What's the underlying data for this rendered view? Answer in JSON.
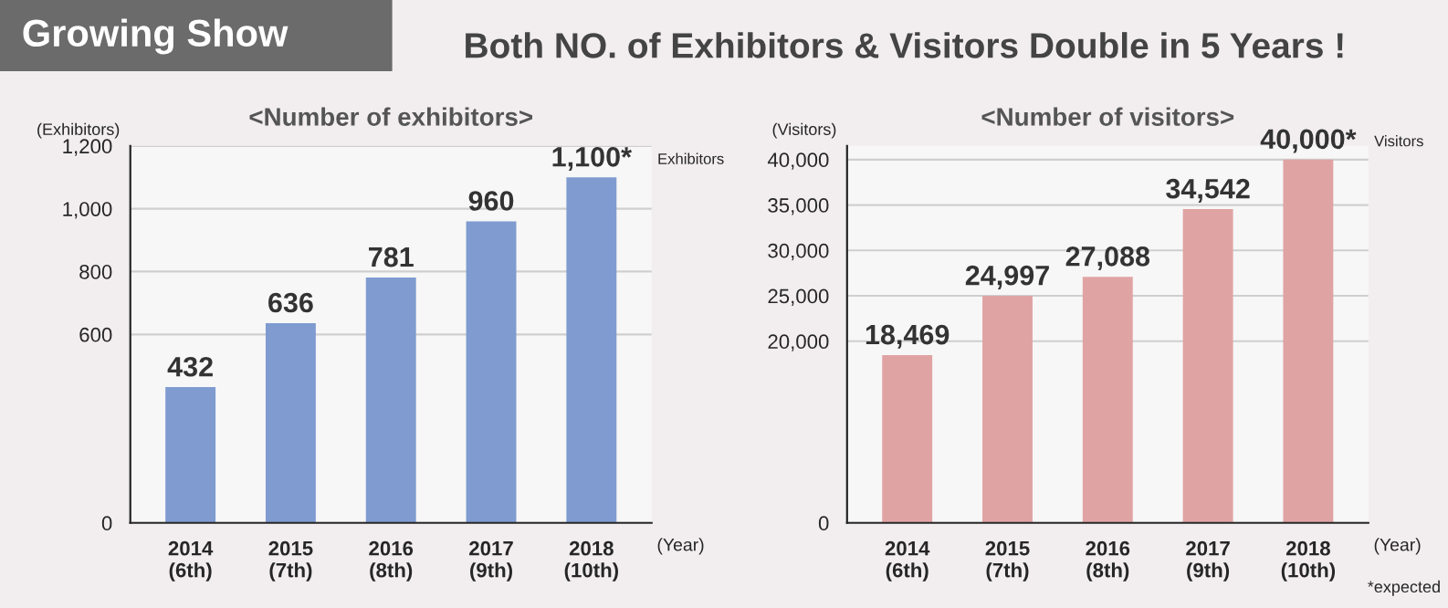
{
  "chart_data": [
    {
      "type": "bar",
      "title": "<Number of exhibitors>",
      "ylabel": "(Exhibitors)",
      "xlabel": "(Year)",
      "categories": [
        "2014\n(6th)",
        "2015\n(7th)",
        "2016\n(8th)",
        "2017\n(9th)",
        "2018\n(10th)"
      ],
      "values": [
        432,
        636,
        781,
        960,
        1100
      ],
      "color": "#7f9bd0",
      "value_labels": [
        "432",
        "636",
        "781",
        "960",
        "1,100*"
      ],
      "ylim": [
        0,
        1200
      ],
      "yticks": [
        0,
        600,
        {
          "value": 800,
          "label": "800"
        },
        {
          "value": 1000,
          "label": "1,000"
        },
        {
          "value": 1200,
          "label": "1,200"
        }
      ],
      "grid": "y",
      "annotations": [
        "Growing Show",
        "Both NO. of Exhibitors & Visitors Double in 5 Years !",
        "Exhibitors"
      ]
    },
    {
      "type": "bar",
      "title": "<Number of visitors>",
      "ylabel": "(Visitors)",
      "xlabel": "(Year)",
      "categories": [
        "2014\n(6th)",
        "2015\n(7th)",
        "2016\n(8th)",
        "2017\n(9th)",
        "2018\n(10th)"
      ],
      "values": [
        18469,
        24997,
        27088,
        34542,
        40000
      ],
      "color": "#e0a3a3",
      "value_labels": [
        "18,469",
        "24,997",
        "27,088",
        "34,542",
        "40,000*"
      ],
      "ylim": [
        0,
        41500
      ],
      "yticks": [
        0,
        {
          "value": 20000,
          "label": "20,000"
        },
        {
          "value": 25000,
          "label": "25,000"
        },
        {
          "value": 30000,
          "label": "30,000"
        },
        {
          "value": 35000,
          "label": "35,000"
        },
        {
          "value": 40000,
          "label": "40,000"
        }
      ],
      "grid": "y",
      "annotations": [
        "Visitors",
        "*expected"
      ]
    }
  ]
}
